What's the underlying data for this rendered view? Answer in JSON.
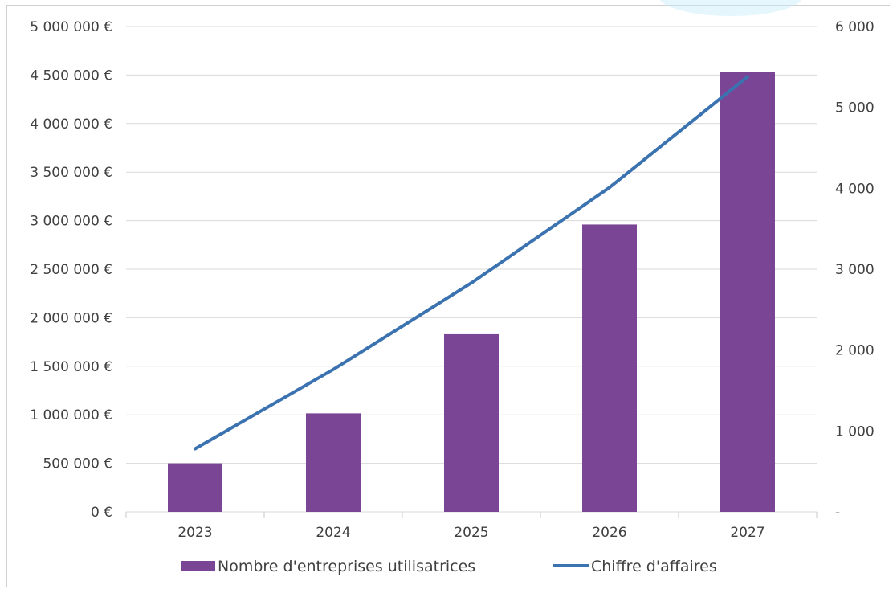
{
  "chart_data": {
    "type": "bar",
    "categories": [
      "2023",
      "2024",
      "2025",
      "2026",
      "2027"
    ],
    "series": [
      {
        "name": "Nombre d'entreprises utilisatrices",
        "kind": "bar",
        "axis": "left",
        "color": "#7b4596",
        "values": [
          500000,
          1015000,
          1830000,
          2960000,
          4530000
        ]
      },
      {
        "name": "Chiffre d'affaires",
        "kind": "line",
        "axis": "right",
        "color": "#3b72b0",
        "values": [
          780,
          1760,
          2830,
          4010,
          5380
        ]
      }
    ],
    "y_left": {
      "ylim": [
        0,
        5000000
      ],
      "tick_labels": [
        "0 €",
        "500 000 €",
        "1 000 000 €",
        "1 500 000 €",
        "2 000 000 €",
        "2 500 000 €",
        "3 000 000 €",
        "3 500 000 €",
        "4 000 000 €",
        "4 500 000 €",
        "5 000 000 €"
      ]
    },
    "y_right": {
      "ylim": [
        0,
        6000
      ],
      "tick_labels": [
        "-",
        "1 000",
        "2 000",
        "3 000",
        "4 000",
        "5 000",
        "6 000"
      ]
    },
    "grid": true,
    "legend": "bottom"
  }
}
